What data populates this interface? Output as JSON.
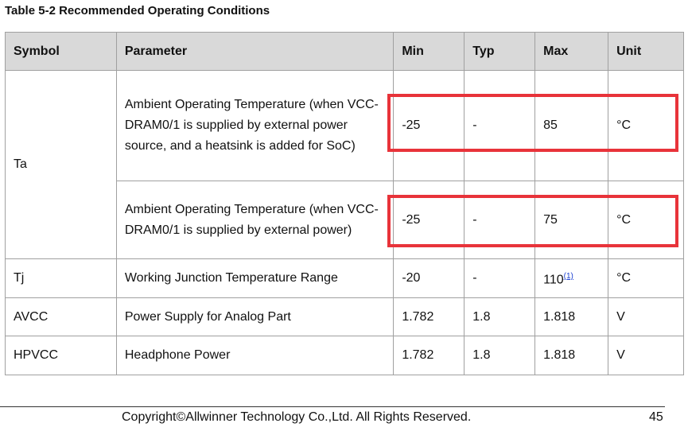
{
  "title": "Table 5-2 Recommended Operating Conditions",
  "table": {
    "headers": [
      "Symbol",
      "Parameter",
      "Min",
      "Typ",
      "Max",
      "Unit"
    ],
    "rows": [
      {
        "symbol": "Ta",
        "conditions": [
          {
            "parameter": "Ambient Operating Temperature (when VCC-DRAM0/1 is supplied by external power source, and a heatsink is added for SoC)",
            "min": "-25",
            "typ": "-",
            "max": "85",
            "unit": "°C"
          },
          {
            "parameter": "Ambient Operating Temperature (when VCC-DRAM0/1 is supplied by external power)",
            "min": "-25",
            "typ": "-",
            "max": "75",
            "unit": "°C"
          }
        ]
      },
      {
        "symbol": "Tj",
        "conditions": [
          {
            "parameter": "Working Junction Temperature Range",
            "min": "-20",
            "typ": "-",
            "max": "110",
            "max_note": "(1)",
            "unit": "°C"
          }
        ]
      },
      {
        "symbol": "AVCC",
        "conditions": [
          {
            "parameter": "Power Supply for Analog Part",
            "min": "1.782",
            "typ": "1.8",
            "max": "1.818",
            "unit": "V"
          }
        ]
      },
      {
        "symbol": "HPVCC",
        "conditions": [
          {
            "parameter": "Headphone Power",
            "min": "1.782",
            "typ": "1.8",
            "max": "1.818",
            "unit": "V"
          }
        ]
      }
    ]
  },
  "footer": {
    "copyright": "Copyright©Allwinner Technology Co.,Ltd. All Rights Reserved.",
    "page": "45"
  }
}
